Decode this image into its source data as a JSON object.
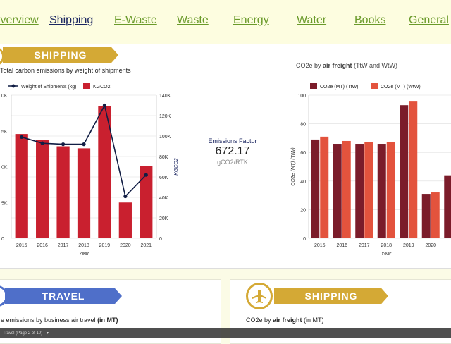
{
  "nav": {
    "items": [
      {
        "label": "Overview",
        "active": false
      },
      {
        "label": "Shipping",
        "active": true
      },
      {
        "label": "E-Waste",
        "active": false
      },
      {
        "label": "Waste",
        "active": false
      },
      {
        "label": "Energy",
        "active": false
      },
      {
        "label": "Water",
        "active": false
      },
      {
        "label": "Books",
        "active": false
      },
      {
        "label": "General",
        "active": false
      }
    ]
  },
  "shipping_section": {
    "ribbon_label": "SHIPPING",
    "left_chart_title": "Total carbon emissions by weight of shipments",
    "right_chart_title_prefix": "CO2e by ",
    "right_chart_title_bold": "air freight",
    "right_chart_title_suffix": " (TtW and WtW)",
    "factor_label": "Emissions Factor",
    "factor_value": "672.17",
    "factor_unit": "gCO2/RTK"
  },
  "chart_data": [
    {
      "type": "bar+line",
      "categories": [
        "2015",
        "2016",
        "2017",
        "2018",
        "2019",
        "2020",
        "2021"
      ],
      "series": [
        {
          "name": "Weight of Shipments (kg)",
          "kind": "line",
          "color": "#111d44",
          "values": [
            99000,
            93000,
            92000,
            92000,
            130000,
            41000,
            62000
          ]
        },
        {
          "name": "KGCO2",
          "kind": "bar",
          "color": "#c9202f",
          "values": [
            102000,
            96000,
            90000,
            88000,
            129000,
            35000,
            71000
          ]
        }
      ],
      "xlabel": "Year",
      "ylabel_right": "KGCO2",
      "yticks_left": [
        "0",
        "5K",
        "0K",
        "5K",
        "0K"
      ],
      "yticks_right": [
        "0",
        "20K",
        "40K",
        "60K",
        "80K",
        "100K",
        "120K",
        "140K"
      ],
      "ylim": [
        0,
        140000
      ]
    },
    {
      "type": "bar",
      "categories": [
        "2015",
        "2016",
        "2017",
        "2018",
        "2019",
        "2020",
        "2"
      ],
      "series": [
        {
          "name": "CO2e (MT) (TtW)",
          "color": "#7b1c2a",
          "values": [
            69,
            66,
            66,
            66,
            93,
            31,
            44
          ]
        },
        {
          "name": "CO2e (MT) (WtW)",
          "color": "#e3533d",
          "values": [
            71,
            68,
            67,
            67,
            96,
            32,
            null
          ]
        }
      ],
      "xlabel": "Year",
      "ylabel": "CO2e (MT) (TtW)",
      "yticks": [
        "0",
        "20",
        "40",
        "60",
        "80",
        "100"
      ],
      "ylim": [
        0,
        100
      ]
    }
  ],
  "lower": {
    "travel_ribbon": "TRAVEL",
    "travel_title_prefix": "e emissions by business air travel ",
    "travel_title_bold": "(in MT)",
    "shipping_ribbon": "SHIPPING",
    "shipping_title_prefix": "CO2e by ",
    "shipping_title_bold": "air freight",
    "shipping_title_suffix": " (in MT)"
  },
  "taskbar": {
    "text": "Travel (Page 2 of 10)"
  },
  "colors": {
    "accent_gold": "#d4a935",
    "travel_blue": "#4f6fc9",
    "nav_green": "#6a9a2a",
    "nav_active": "#1a2560"
  }
}
